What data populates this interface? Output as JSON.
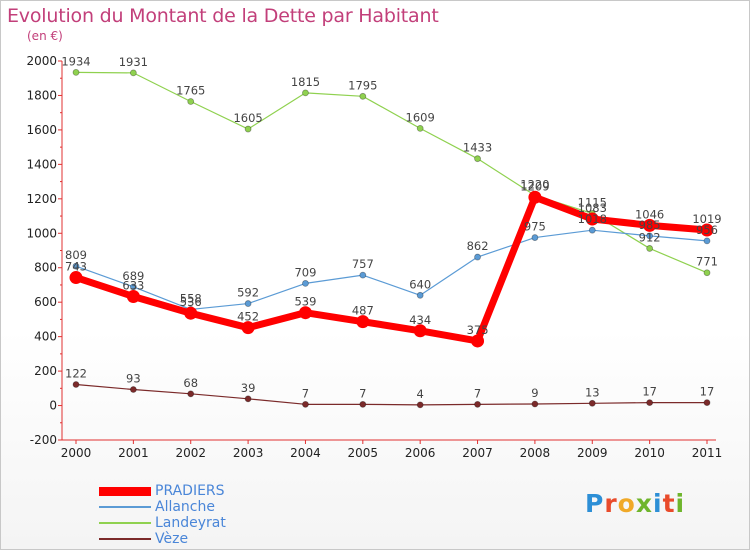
{
  "title": "Evolution du Montant de la Dette par Habitant",
  "subtitle": "(en €)",
  "logo": {
    "letters": [
      {
        "ch": "P",
        "color": "#2d8fd6"
      },
      {
        "ch": "r",
        "color": "#e94b2b"
      },
      {
        "ch": "o",
        "color": "#f0a928"
      },
      {
        "ch": "x",
        "color": "#6fb52c"
      },
      {
        "ch": "i",
        "color": "#2d8fd6"
      },
      {
        "ch": "t",
        "color": "#e94b2b"
      },
      {
        "ch": "i",
        "color": "#6fb52c"
      }
    ]
  },
  "chart_data": {
    "type": "line",
    "title": "Evolution du Montant de la Dette par Habitant",
    "ylabel": "(en €)",
    "xlabel": "",
    "x": [
      "2000",
      "2001",
      "2002",
      "2003",
      "2004",
      "2005",
      "2006",
      "2007",
      "2008",
      "2009",
      "2010",
      "2011"
    ],
    "ylim": [
      -200,
      2000
    ],
    "yticks": [
      -200,
      0,
      200,
      400,
      600,
      800,
      1000,
      1200,
      1400,
      1600,
      1800,
      2000
    ],
    "grid": false,
    "legend_position": "bottom-left",
    "series": [
      {
        "name": "PRADIERS",
        "color": "#ff0000",
        "values": [
          743,
          633,
          536,
          452,
          539,
          487,
          434,
          375,
          1209,
          1083,
          1046,
          1019
        ]
      },
      {
        "name": "Allanche",
        "color": "#5b9bd5",
        "values": [
          809,
          689,
          558,
          592,
          709,
          757,
          640,
          862,
          975,
          1018,
          985,
          956
        ]
      },
      {
        "name": "Landeyrat",
        "color": "#8fd14f",
        "values": [
          1934,
          1931,
          1765,
          1605,
          1815,
          1795,
          1609,
          1433,
          1220,
          1115,
          912,
          771
        ]
      },
      {
        "name": "Vèze",
        "color": "#7b2a2a",
        "values": [
          122,
          93,
          68,
          39,
          7,
          7,
          4,
          7,
          9,
          13,
          17,
          17
        ]
      }
    ]
  }
}
